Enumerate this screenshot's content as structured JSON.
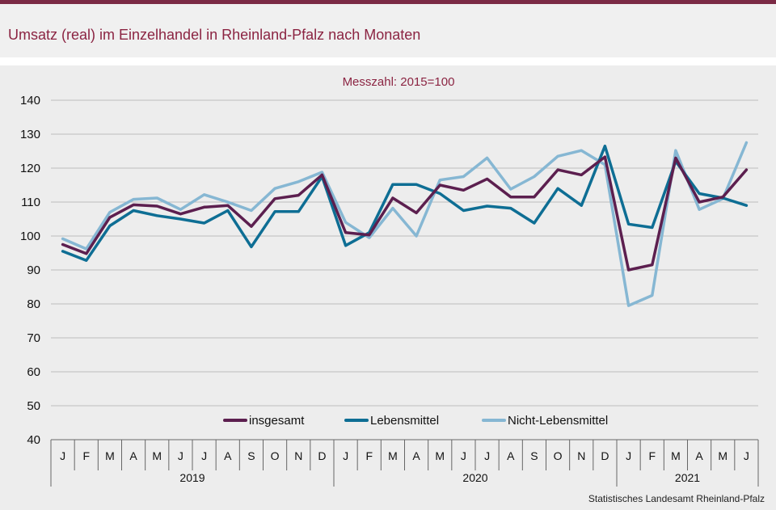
{
  "header": {
    "title": "Umsatz (real) im Einzelhandel in Rheinland-Pfalz nach Monaten"
  },
  "source": "Statistisches Landesamt  Rheinland-Pfalz",
  "chart_data": {
    "type": "line",
    "subtitle": "Messzahl:  2015=100",
    "ylim": [
      40,
      140
    ],
    "yticks": [
      40,
      50,
      60,
      70,
      80,
      90,
      100,
      110,
      120,
      130,
      140
    ],
    "grid": true,
    "legend_position": "bottom-center",
    "months": [
      "J",
      "F",
      "M",
      "A",
      "M",
      "J",
      "J",
      "A",
      "S",
      "O",
      "N",
      "D",
      "J",
      "F",
      "M",
      "A",
      "M",
      "J",
      "J",
      "A",
      "S",
      "O",
      "N",
      "D",
      "J",
      "F",
      "M",
      "A",
      "M",
      "J"
    ],
    "years": [
      {
        "label": "2019",
        "months": 12
      },
      {
        "label": "2020",
        "months": 12
      },
      {
        "label": "2021",
        "months": 6
      }
    ],
    "series": [
      {
        "name": "insgesamt",
        "color": "#5c1f4f",
        "values": [
          97.5,
          94.8,
          105.5,
          109.2,
          108.8,
          106.5,
          108.5,
          109.0,
          102.8,
          111.0,
          112.0,
          118.0,
          101.0,
          100.3,
          111.2,
          106.8,
          115.0,
          113.5,
          116.8,
          111.5,
          111.5,
          119.5,
          118.0,
          123.3,
          90.0,
          91.5,
          123.0,
          110.0,
          111.5,
          119.5
        ]
      },
      {
        "name": "Lebensmittel",
        "color": "#0e6e94",
        "values": [
          95.5,
          92.8,
          103.0,
          107.5,
          106.0,
          105.0,
          103.8,
          107.5,
          96.8,
          107.2,
          107.2,
          117.5,
          97.2,
          101.0,
          115.2,
          115.2,
          112.5,
          107.5,
          108.8,
          108.2,
          103.8,
          114.0,
          109.0,
          126.5,
          103.5,
          102.5,
          122.0,
          112.5,
          111.2,
          109.0
        ]
      },
      {
        "name": "Nicht-Lebensmittel",
        "color": "#86b7d3",
        "values": [
          99.2,
          96.2,
          107.0,
          110.8,
          111.2,
          107.8,
          112.2,
          110.0,
          107.5,
          114.0,
          116.0,
          118.8,
          104.0,
          99.5,
          108.2,
          100.0,
          116.5,
          117.5,
          123.0,
          113.8,
          117.5,
          123.5,
          125.2,
          121.0,
          79.5,
          82.5,
          125.2,
          107.8,
          111.0,
          127.5
        ]
      }
    ]
  }
}
